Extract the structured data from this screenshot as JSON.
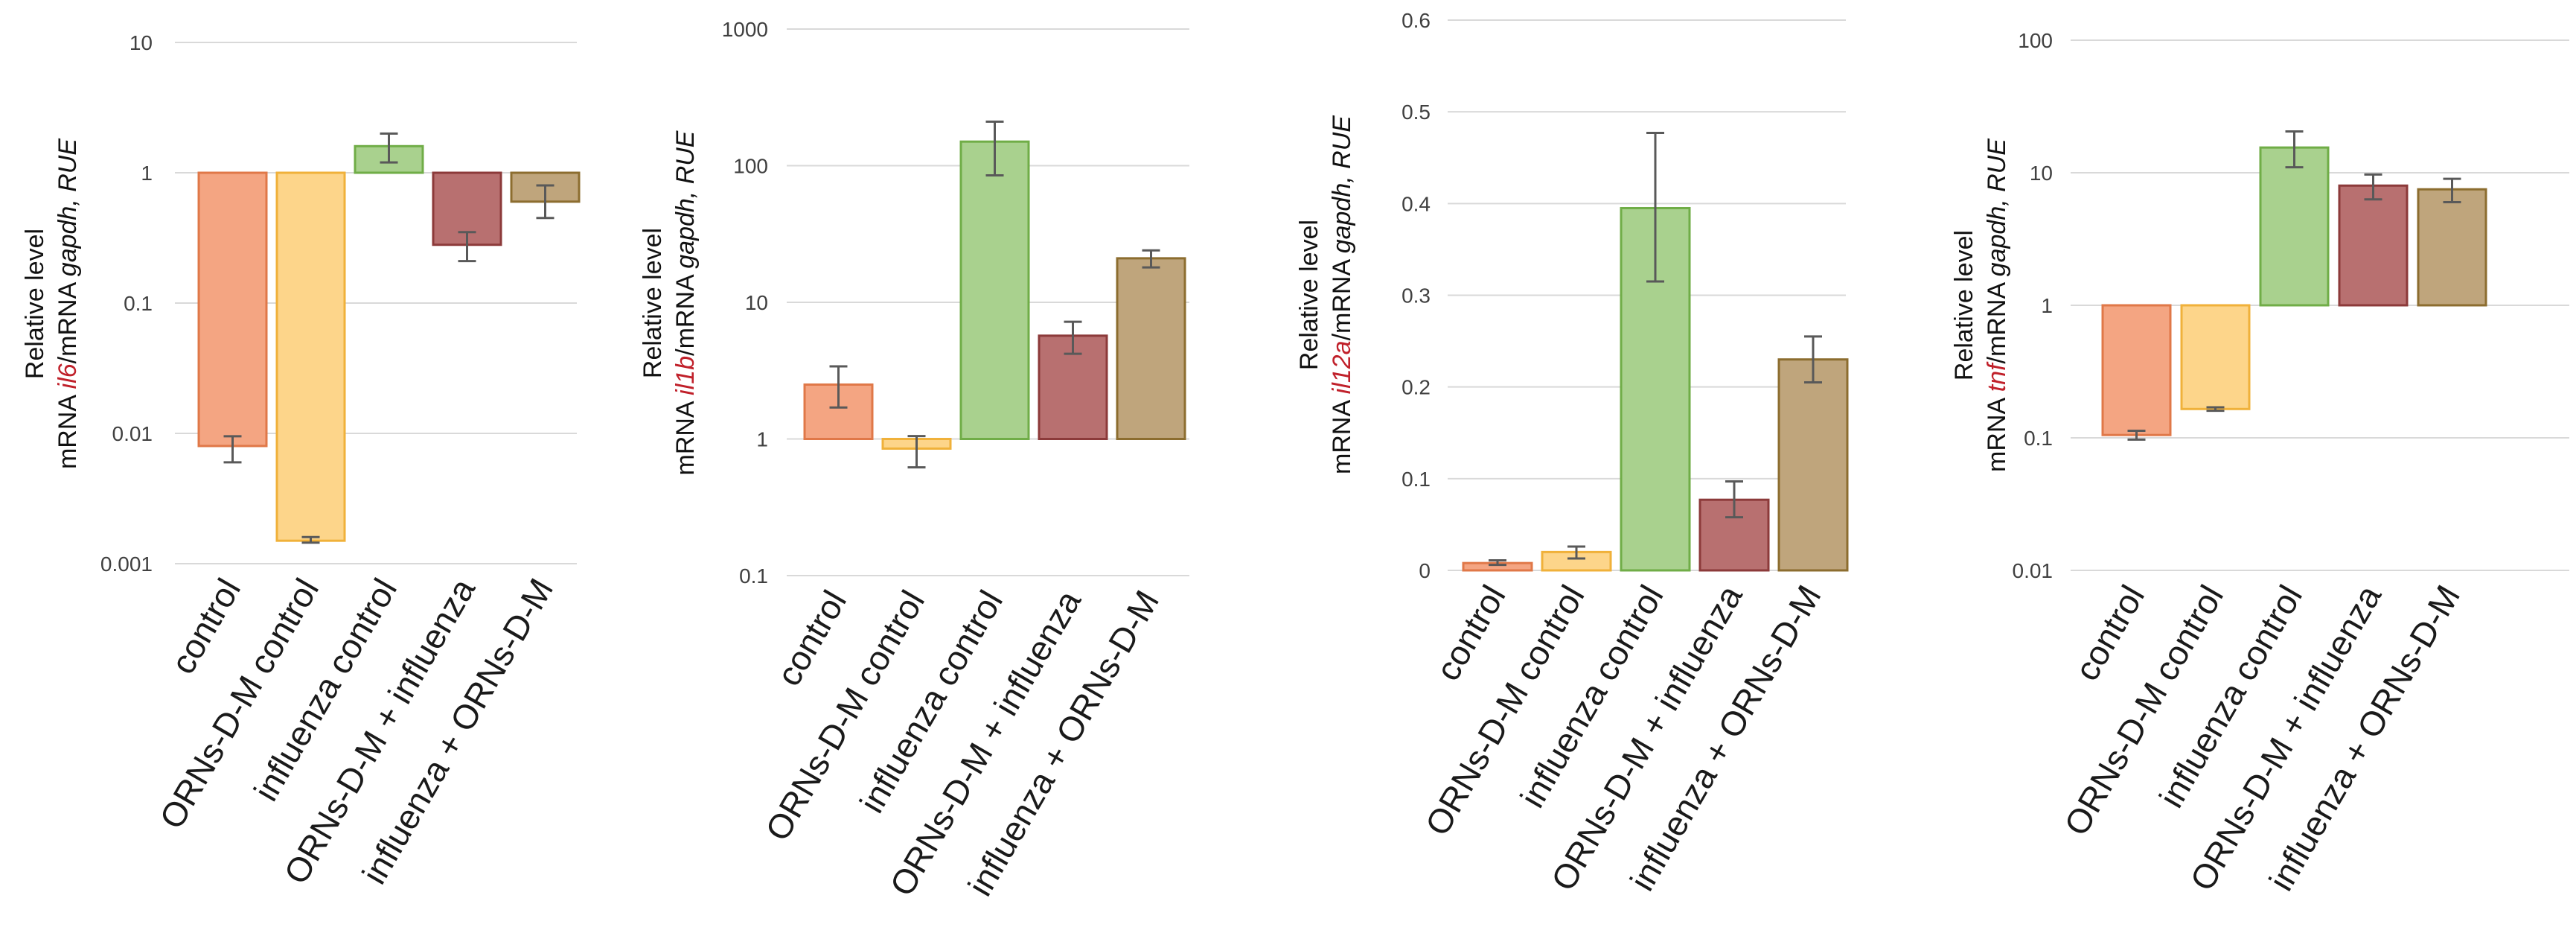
{
  "chart_data": [
    {
      "type": "bar",
      "scale": "log",
      "baseline": 1,
      "ylim": [
        0.001,
        10
      ],
      "yticks": [
        "10",
        "1",
        "0.1",
        "0.01",
        "0.001"
      ],
      "ylabel": {
        "line1": "Relative level",
        "prefix": "mRNA ",
        "gene": "il6",
        "mid": "/mRNA ",
        "ref": "gapdh, RUE"
      },
      "categories": [
        "control",
        "ORNs-D-M control",
        "influenza control",
        "ORNs-D-M + influenza",
        "influenza + ORNs-D-M"
      ],
      "values": [
        0.008,
        0.0015,
        1.6,
        0.28,
        0.6
      ],
      "err_low": [
        0.006,
        0.00145,
        1.2,
        0.21,
        0.45
      ],
      "err_high": [
        0.0095,
        0.0016,
        2.0,
        0.35,
        0.8
      ]
    },
    {
      "type": "bar",
      "scale": "log",
      "baseline": 1,
      "ylim": [
        0.1,
        1000
      ],
      "yticks": [
        "1000",
        "100",
        "10",
        "1",
        "0.1"
      ],
      "ylabel": {
        "line1": "Relative level",
        "prefix": "mRNA ",
        "gene": "il1b",
        "mid": "/mRNA ",
        "ref": "gapdh, RUE"
      },
      "categories": [
        "control",
        "ORNs-D-M control",
        "influenza control",
        "ORNs-D-M + influenza",
        "influenza + ORNs-D-M"
      ],
      "values": [
        2.5,
        0.85,
        150,
        5.7,
        21
      ],
      "err_low": [
        1.7,
        0.62,
        85,
        4.2,
        18
      ],
      "err_high": [
        3.4,
        1.05,
        210,
        7.2,
        24
      ]
    },
    {
      "type": "bar",
      "scale": "linear",
      "baseline": 0,
      "ylim": [
        0,
        0.6
      ],
      "yticks": [
        "0.6",
        "0.5",
        "0.4",
        "0.3",
        "0.2",
        "0.1",
        "0"
      ],
      "ylabel": {
        "line1": "Relative level",
        "prefix": "mRNA ",
        "gene": "il12a",
        "mid": "/mRNA ",
        "ref": "gapdh, RUE"
      },
      "categories": [
        "control",
        "ORNs-D-M control",
        "influenza control",
        "ORNs-D-M + influenza",
        "influenza + ORNs-D-M"
      ],
      "values": [
        0.008,
        0.02,
        0.395,
        0.077,
        0.23
      ],
      "err_low": [
        0.006,
        0.013,
        0.315,
        0.058,
        0.205
      ],
      "err_high": [
        0.011,
        0.026,
        0.477,
        0.097,
        0.255
      ]
    },
    {
      "type": "bar",
      "scale": "log",
      "baseline": 1,
      "ylim": [
        0.01,
        100
      ],
      "yticks": [
        "100",
        "10",
        "1",
        "0.1",
        "0.01"
      ],
      "ylabel": {
        "line1": "Relative level",
        "prefix": "mRNA ",
        "gene": "tnf",
        "mid": "/mRNA ",
        "ref": "gapdh, RUE"
      },
      "categories": [
        "control",
        "ORNs-D-M control",
        "influenza control",
        "ORNs-D-M + influenza",
        "influenza + ORNs-D-M"
      ],
      "values": [
        0.105,
        0.165,
        15.5,
        8,
        7.5
      ],
      "err_low": [
        0.097,
        0.16,
        11,
        6.3,
        6
      ],
      "err_high": [
        0.113,
        0.17,
        20.5,
        9.7,
        9
      ]
    }
  ],
  "colors": {
    "fills": [
      "#f4a582",
      "#fdd58a",
      "#a9d18e",
      "#b87070",
      "#bfa57c"
    ],
    "strokes": [
      "#e07848",
      "#f0b13a",
      "#70ad47",
      "#8c3a3a",
      "#8c6d2f"
    ],
    "grid": "#d9d9d9",
    "error": "#595959",
    "gene_label": "#c0202a"
  }
}
